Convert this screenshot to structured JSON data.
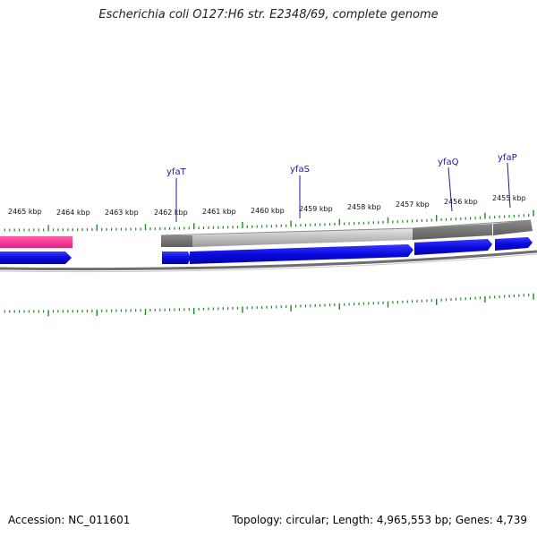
{
  "title": "Escherichia coli O127:H6 str. E2348/69, complete genome",
  "footer": {
    "accession": "Accession: NC_011601",
    "stats": "Topology: circular; Length: 4,965,553 bp; Genes: 4,739"
  },
  "colors": {
    "forward_gene": "#0a0ae0",
    "rna_feature": "#ee2f8c",
    "cds_dark": "#707070",
    "cds_light": "#bdbdbd",
    "backbone": "#7a7a7a",
    "tick": "#1f8a1f",
    "gene_label": "#1a1aa0"
  },
  "ruler": {
    "unit": "kbp",
    "labels": [
      "2465 kbp",
      "2464 kbp",
      "2463 kbp",
      "2462 kbp",
      "2461 kbp",
      "2460 kbp",
      "2459 kbp",
      "2458 kbp",
      "2457 kbp",
      "2456 kbp",
      "2455 kbp"
    ]
  },
  "genes": [
    {
      "name": "yfaT"
    },
    {
      "name": "yfaS"
    },
    {
      "name": "yfaQ"
    },
    {
      "name": "yfaP"
    }
  ]
}
